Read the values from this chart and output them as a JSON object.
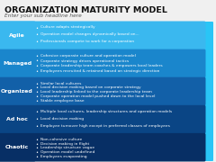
{
  "title": "ORGANIZATION MATURITY MODEL",
  "subtitle": "Enter your sub headline here",
  "title_color": "#111111",
  "subtitle_color": "#555555",
  "background_color": "#f0f0f0",
  "accent_color": "#29c5f6",
  "rows": [
    {
      "label": "Agile",
      "label_bg": "#3ab8ef",
      "content_bg": "#3ab8ef",
      "bullets": [
        "Culture adapts strategically",
        "Operation model changes dynamically based on...",
        "Professionals compete to work for a corporation"
      ]
    },
    {
      "label": "Managed",
      "label_bg": "#1a86cc",
      "content_bg": "#1a86cc",
      "bullets": [
        "Cohesive corporate culture and operation model",
        "Corporate strategy drives operational tactics",
        "Corporate leadership team coaches & empowers local leaders",
        "Employees recruited & retained based on strategic direction"
      ]
    },
    {
      "label": "Organized",
      "label_bg": "#1260a8",
      "content_bg": "#1260a8",
      "bullets": [
        "Similar local cultures",
        "Local decision making based on corporate strategy",
        "Local leadership linked to the corporate leadership team",
        "Corporate operation model pushed down to the local level",
        "Stable employee base"
      ]
    },
    {
      "label": "Ad hoc",
      "label_bg": "#0a4585",
      "content_bg": "#0a4585",
      "bullets": [
        "Multiple local cultures, leadership structures and operation models",
        "Local decision making",
        "Employee turnover high except in preferred classes of employees"
      ]
    },
    {
      "label": "Chaotic",
      "label_bg": "#072f65",
      "content_bg": "#072f65",
      "bullets": [
        "Non-cohesive culture",
        "Decision making in flight",
        "Leadership structure vague",
        "Operation model undefined",
        "Employees evaporating"
      ]
    }
  ]
}
